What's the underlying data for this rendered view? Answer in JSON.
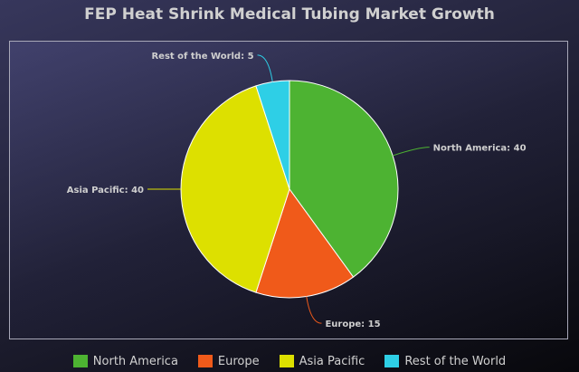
{
  "chart_data": {
    "type": "pie",
    "title": "FEP Heat Shrink Medical Tubing Market Growth",
    "categories": [
      "North America",
      "Europe",
      "Asia Pacific",
      "Rest of the World"
    ],
    "values": [
      40,
      15,
      40,
      5
    ],
    "colors": [
      "#4db332",
      "#f05a1a",
      "#dde000",
      "#2ecfe6"
    ],
    "label_format": "{name}: {value}",
    "labels": [
      "North America: 40",
      "Europe: 15",
      "Asia Pacific: 40",
      "Rest of the World: 5"
    ],
    "legend_position": "bottom"
  }
}
